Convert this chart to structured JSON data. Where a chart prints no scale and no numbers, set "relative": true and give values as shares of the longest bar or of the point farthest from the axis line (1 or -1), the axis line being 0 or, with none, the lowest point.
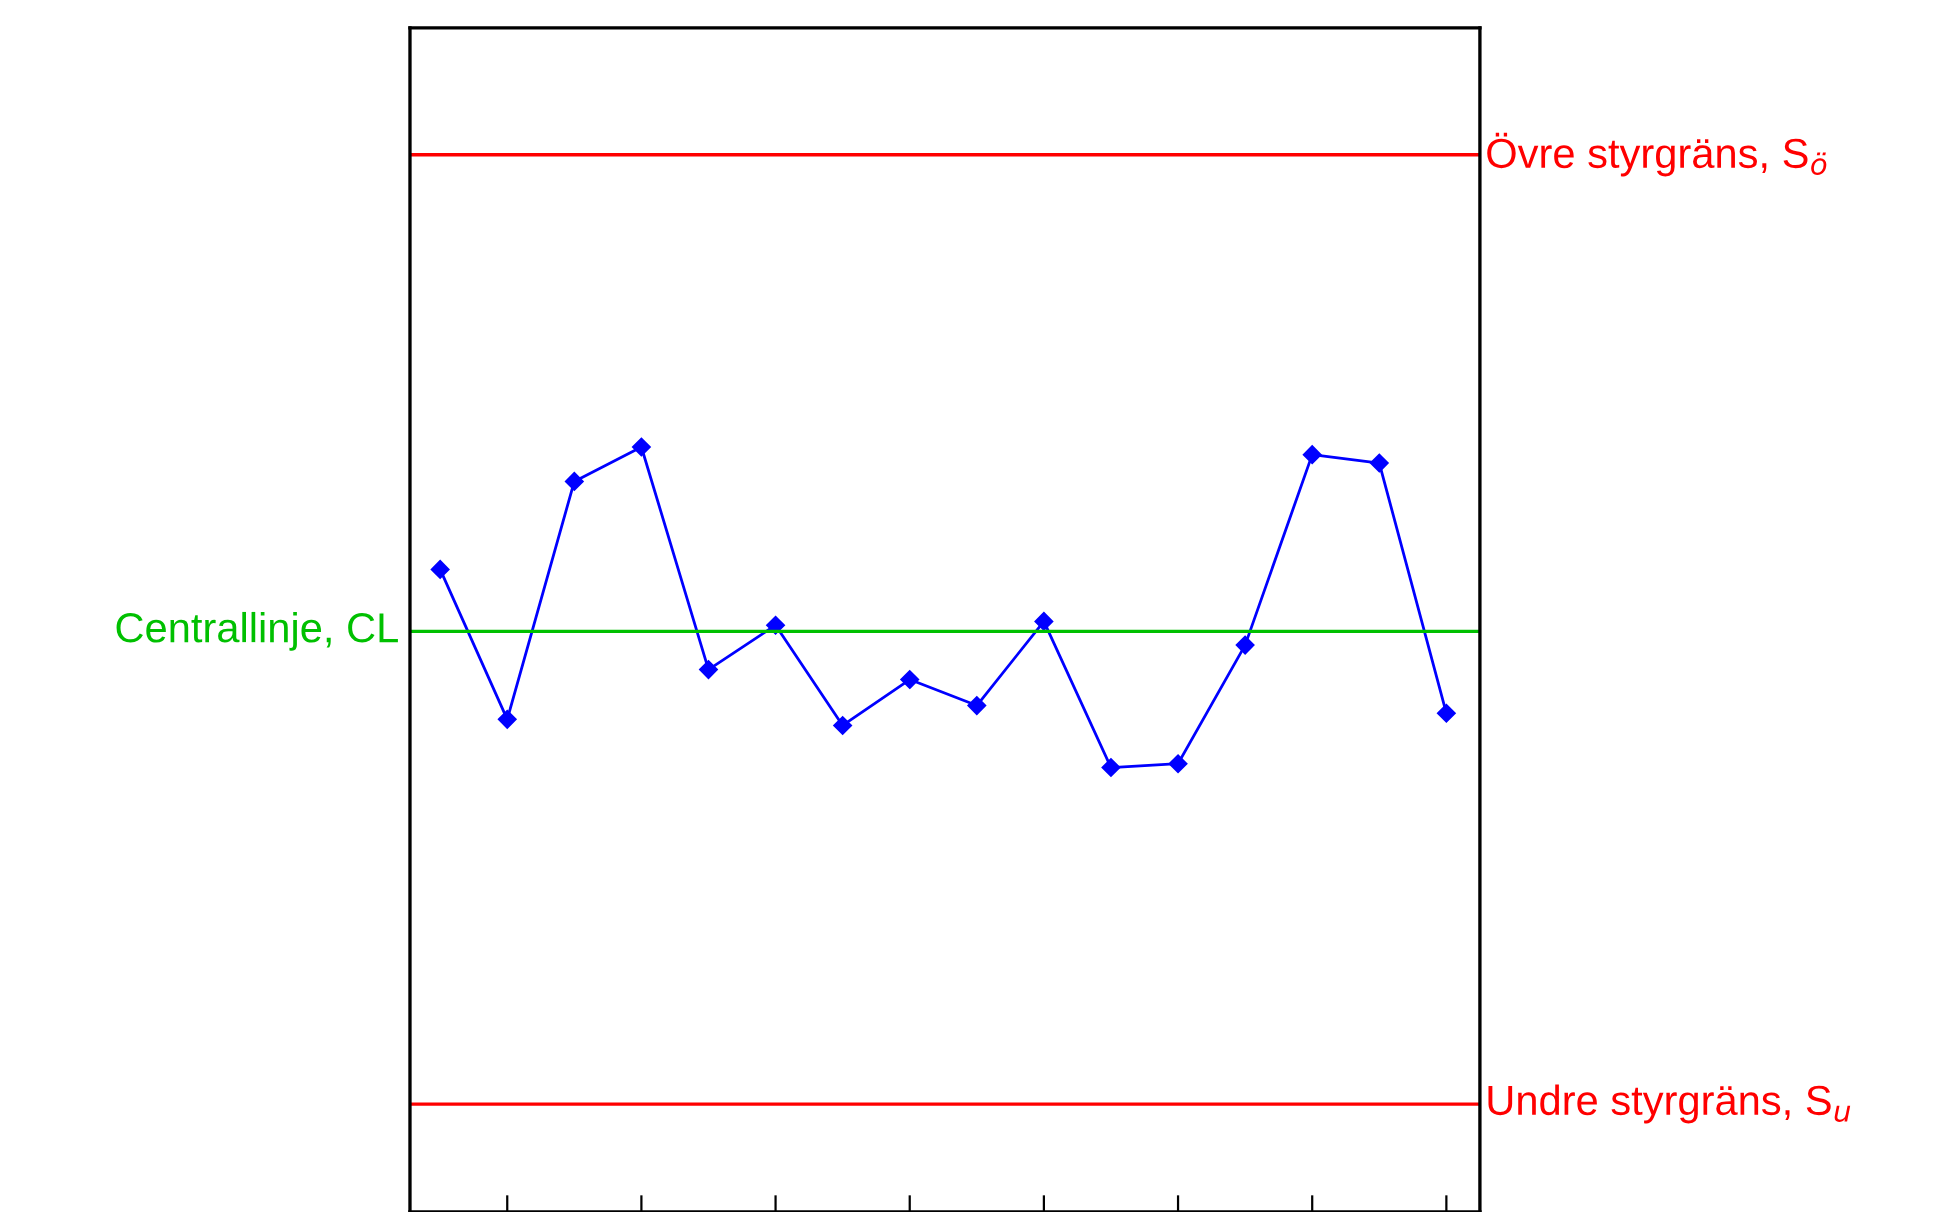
{
  "chart_data": {
    "type": "line",
    "relative": true,
    "marker": "diamond",
    "line_style": "solid",
    "grid": false,
    "legend": false,
    "categories": [
      null,
      null,
      null,
      null,
      null,
      null,
      null,
      null,
      null,
      null,
      null,
      null,
      null,
      null,
      null,
      null
    ],
    "series": [
      {
        "color": "#0000ff",
        "values": [
          0.84,
          0.644,
          0.955,
          1,
          0.709,
          0.767,
          0.636,
          0.696,
          0.662,
          0.772,
          0.581,
          0.586,
          0.741,
          0.99,
          0.979,
          0.652
        ]
      }
    ],
    "ref_lines": [
      {
        "axis": "y",
        "value": 1.382,
        "label": "Övre styrgräns, S$_{ö}$",
        "color": "#ff0000",
        "line_style": "solid"
      },
      {
        "axis": "y",
        "value": 0.759,
        "label": "Centrallinje, CL",
        "color": "#00c000",
        "line_style": "solid"
      },
      {
        "axis": "y",
        "value": 0.141,
        "label": "Undre styrgräns, S$_{u}$",
        "color": "#ff0000",
        "line_style": "solid"
      }
    ]
  }
}
